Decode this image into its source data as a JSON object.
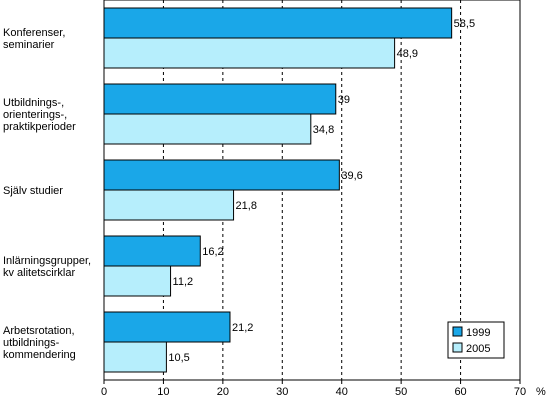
{
  "chart_data": {
    "type": "bar",
    "orientation": "horizontal",
    "categories": [
      [
        "Konferenser,",
        "seminarier"
      ],
      [
        "Utbildnings-,",
        "orienterings-,",
        "praktikperioder"
      ],
      [
        "Själv studier"
      ],
      [
        "Inlärningsgrupper,",
        "kv alitetscirklar"
      ],
      [
        "Arbetsrotation,",
        "utbildnings-",
        "kommendering"
      ]
    ],
    "series": [
      {
        "name": "1999",
        "color": "#1aa7e8",
        "values": [
          58.5,
          39,
          39.6,
          16.2,
          21.2
        ],
        "labels": [
          "58,5",
          "39",
          "39,6",
          "16,2",
          "21,2"
        ]
      },
      {
        "name": "2005",
        "color": "#b6eefc",
        "values": [
          48.9,
          34.8,
          21.8,
          11.2,
          10.5
        ],
        "labels": [
          "48,9",
          "34,8",
          "21,8",
          "11,2",
          "10,5"
        ]
      }
    ],
    "xlim": [
      0,
      70
    ],
    "xticks": [
      0,
      10,
      20,
      30,
      40,
      50,
      60,
      70
    ],
    "xunit": "%",
    "grid": "vertical dashed",
    "legend_position": "bottom-right"
  }
}
